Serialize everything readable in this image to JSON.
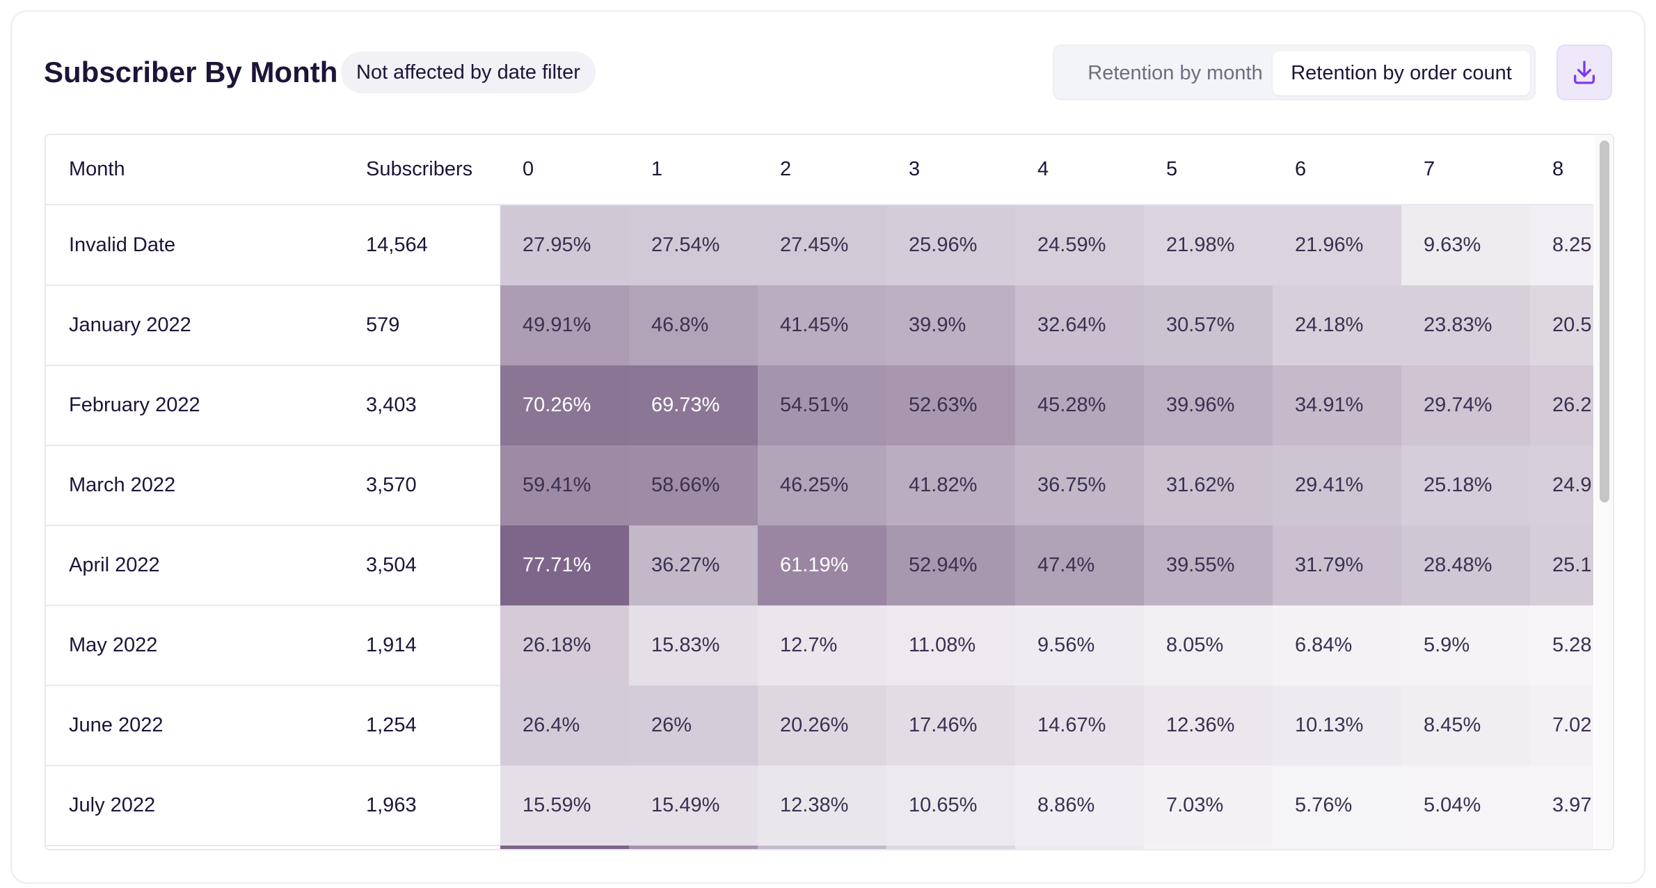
{
  "title": "Subscriber By Month",
  "badge": "Not affected by date filter",
  "toggle": {
    "options": [
      "Retention by month",
      "Retention by order count"
    ],
    "active_index": 1
  },
  "download_icon": "download-icon",
  "table": {
    "columns": [
      "Month",
      "Subscribers",
      "0",
      "1",
      "2",
      "3",
      "4",
      "5",
      "6",
      "7",
      "8"
    ],
    "rows": [
      {
        "month": "Invalid Date",
        "subscribers": "14,564",
        "values": [
          "27.95%",
          "27.54%",
          "27.45%",
          "25.96%",
          "24.59%",
          "21.98%",
          "21.96%",
          "9.63%",
          "8.25"
        ]
      },
      {
        "month": "January 2022",
        "subscribers": "579",
        "values": [
          "49.91%",
          "46.8%",
          "41.45%",
          "39.9%",
          "32.64%",
          "30.57%",
          "24.18%",
          "23.83%",
          "20.5"
        ]
      },
      {
        "month": "February 2022",
        "subscribers": "3,403",
        "values": [
          "70.26%",
          "69.73%",
          "54.51%",
          "52.63%",
          "45.28%",
          "39.96%",
          "34.91%",
          "29.74%",
          "26.2"
        ]
      },
      {
        "month": "March 2022",
        "subscribers": "3,570",
        "values": [
          "59.41%",
          "58.66%",
          "46.25%",
          "41.82%",
          "36.75%",
          "31.62%",
          "29.41%",
          "25.18%",
          "24.9"
        ]
      },
      {
        "month": "April 2022",
        "subscribers": "3,504",
        "values": [
          "77.71%",
          "36.27%",
          "61.19%",
          "52.94%",
          "47.4%",
          "39.55%",
          "31.79%",
          "28.48%",
          "25.1"
        ]
      },
      {
        "month": "May 2022",
        "subscribers": "1,914",
        "values": [
          "26.18%",
          "15.83%",
          "12.7%",
          "11.08%",
          "9.56%",
          "8.05%",
          "6.84%",
          "5.9%",
          "5.28"
        ]
      },
      {
        "month": "June 2022",
        "subscribers": "1,254",
        "values": [
          "26.4%",
          "26%",
          "20.26%",
          "17.46%",
          "14.67%",
          "12.36%",
          "10.13%",
          "8.45%",
          "7.02"
        ]
      },
      {
        "month": "July 2022",
        "subscribers": "1,963",
        "values": [
          "15.59%",
          "15.49%",
          "12.38%",
          "10.65%",
          "8.86%",
          "7.03%",
          "5.76%",
          "5.04%",
          "3.97"
        ]
      }
    ],
    "partial_row_shades": [
      0.78,
      0.55,
      0.35,
      0.2,
      0.1,
      0.06,
      0.06,
      0.06,
      0.06
    ]
  },
  "colors": {
    "heat_base": "#6b4f78",
    "text_dark": "#1e1438",
    "accent": "#7c3aed"
  }
}
